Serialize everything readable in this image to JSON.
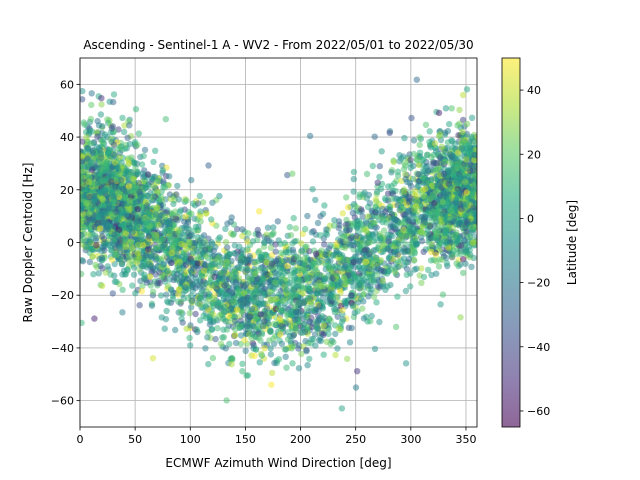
{
  "chart_data": {
    "type": "scatter",
    "title": "Ascending - Sentinel-1 A - WV2 - From 2022/05/01 to 2022/05/30",
    "xlabel": "ECMWF Azimuth Wind Direction [deg]",
    "ylabel": "Raw Doppler Centroid [Hz]",
    "xlim": [
      0,
      360
    ],
    "ylim": [
      -70,
      70
    ],
    "xticks": [
      0,
      50,
      100,
      150,
      200,
      250,
      300,
      350
    ],
    "yticks": [
      -60,
      -40,
      -20,
      0,
      20,
      40,
      60
    ],
    "grid": true,
    "point_alpha": 0.5,
    "colorbar": {
      "label": "Latitude [deg]",
      "colormap": "viridis",
      "range": [
        -65,
        50
      ],
      "ticks": [
        -60,
        -40,
        -20,
        0,
        20,
        40
      ]
    },
    "trend": {
      "description": "Doppler follows a cosine-like dependence on wind direction",
      "mean_by_direction": [
        {
          "x": 0,
          "y": 18
        },
        {
          "x": 25,
          "y": 18
        },
        {
          "x": 50,
          "y": 12
        },
        {
          "x": 75,
          "y": 2
        },
        {
          "x": 100,
          "y": -8
        },
        {
          "x": 125,
          "y": -16
        },
        {
          "x": 150,
          "y": -20
        },
        {
          "x": 175,
          "y": -21
        },
        {
          "x": 200,
          "y": -20
        },
        {
          "x": 225,
          "y": -16
        },
        {
          "x": 250,
          "y": -8
        },
        {
          "x": 275,
          "y": 2
        },
        {
          "x": 300,
          "y": 10
        },
        {
          "x": 325,
          "y": 16
        },
        {
          "x": 350,
          "y": 19
        },
        {
          "x": 360,
          "y": 19
        }
      ],
      "spread_hz": 12
    },
    "n_points": 5500
  }
}
